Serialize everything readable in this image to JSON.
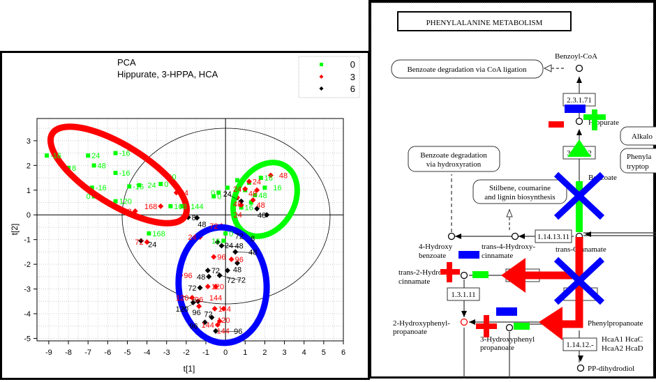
{
  "chart_data": {
    "type": "scatter",
    "title": "PCA",
    "subtitle": "Hippurate, 3-HPPA, HCA",
    "xlabel": "t[1]",
    "ylabel": "t[2]",
    "xlim": [
      -9.6,
      6
    ],
    "ylim": [
      -5.1,
      3.9
    ],
    "xticks": [
      -9,
      -8,
      -7,
      -6,
      -5,
      -4,
      -3,
      -2,
      -1,
      0,
      1,
      2,
      3,
      4,
      5,
      6
    ],
    "yticks": [
      3,
      2,
      1,
      0,
      -1,
      -2,
      -3,
      -4,
      -5
    ],
    "grid": true,
    "legend_position": "top-right",
    "series": [
      {
        "name": "0",
        "color": "#00ff00",
        "marker": "square",
        "points": [
          [
            -9.1,
            2.4,
            "-16"
          ],
          [
            -7,
            2.4,
            "24"
          ],
          [
            -8,
            1.9,
            "8"
          ],
          [
            -6.7,
            2.0,
            "48"
          ],
          [
            -5.6,
            2.5,
            "-16"
          ],
          [
            -5.6,
            1.7,
            "-16"
          ],
          [
            -4.9,
            1.15,
            "-16"
          ],
          [
            -4.4,
            1.2,
            "24"
          ],
          [
            -6.8,
            1.1,
            "-16"
          ],
          [
            -6.7,
            0.75,
            "0"
          ],
          [
            -5.6,
            0.55,
            "120"
          ],
          [
            -2.9,
            1.55,
            "0"
          ],
          [
            -3.3,
            1.25,
            "0"
          ],
          [
            -2.8,
            0.35,
            "168"
          ],
          [
            -2.2,
            0.35,
            "144"
          ],
          [
            -0.6,
            0.75,
            "0"
          ],
          [
            -0.35,
            0.9,
            "0"
          ],
          [
            0.1,
            1.1,
            ""
          ],
          [
            -3.9,
            -0.75,
            "168"
          ],
          [
            0,
            -0.75,
            "0"
          ],
          [
            -0.1,
            -1.05,
            "16"
          ],
          [
            0.6,
            1.4,
            ""
          ],
          [
            1.2,
            1.3,
            ""
          ],
          [
            1.8,
            1.5,
            "16"
          ],
          [
            1.0,
            1.0,
            ""
          ],
          [
            1.5,
            0.8,
            "48"
          ],
          [
            2.0,
            1.1,
            "16"
          ],
          [
            1.3,
            0.5,
            ""
          ],
          [
            0.8,
            0.3,
            "16"
          ]
        ]
      },
      {
        "name": "3",
        "color": "#ff0000",
        "marker": "diamond",
        "points": [
          [
            -2.5,
            0.9,
            "24"
          ],
          [
            -3.3,
            0.35,
            "168"
          ],
          [
            -4.6,
            0.15,
            "48"
          ],
          [
            -4.0,
            -1.1,
            "72"
          ],
          [
            -1.3,
            -0.9,
            "24"
          ],
          [
            -0.2,
            -0.45,
            "72"
          ],
          [
            -0.6,
            -1.7,
            "96"
          ],
          [
            0.3,
            -1.8,
            "96"
          ],
          [
            -2.3,
            -2.45,
            "96"
          ],
          [
            -0.9,
            -2.9,
            "120"
          ],
          [
            -0.5,
            -2.9,
            "144"
          ],
          [
            -1.7,
            -3.35,
            "120"
          ],
          [
            -1.35,
            -3.7,
            "96"
          ],
          [
            -0.55,
            -3.8,
            "144"
          ],
          [
            -0.1,
            -3.8,
            "120"
          ],
          [
            -0.3,
            -4.3,
            "144"
          ],
          [
            -0.4,
            -4.45,
            "144"
          ],
          [
            1.2,
            1.35,
            "24"
          ],
          [
            1.0,
            1.05,
            "24"
          ],
          [
            1.6,
            1.0,
            "48"
          ],
          [
            2.3,
            1.6,
            "48"
          ],
          [
            0.6,
            0.7,
            "48"
          ],
          [
            1.4,
            0.6,
            "48"
          ],
          [
            0.8,
            0.4,
            "24"
          ]
        ]
      },
      {
        "name": "6",
        "color": "#000000",
        "marker": "diamond",
        "points": [
          [
            -1.9,
            -0.1,
            "8"
          ],
          [
            -1.45,
            -0.12,
            "48"
          ],
          [
            -4.3,
            -1.05,
            "24"
          ],
          [
            -0.4,
            -1.1,
            "24"
          ],
          [
            -0.2,
            -1.25,
            "48"
          ],
          [
            0.5,
            -1.5,
            "48"
          ],
          [
            0.6,
            -1.95,
            "48"
          ],
          [
            1.1,
            -0.95,
            "8"
          ],
          [
            -0.9,
            -2.25,
            "72"
          ],
          [
            0.1,
            -2.25,
            "72"
          ],
          [
            -0.85,
            -2.5,
            "48"
          ],
          [
            -0.3,
            -2.45,
            "72"
          ],
          [
            -1.3,
            -2.95,
            "72"
          ],
          [
            -1.65,
            -3.55,
            "96"
          ],
          [
            -1.4,
            -3.5,
            "120"
          ],
          [
            -0.7,
            -4.15,
            "72"
          ],
          [
            -1.05,
            -4.35,
            "96"
          ],
          [
            -0.5,
            -4.7,
            "96"
          ],
          [
            0.8,
            0.55,
            "24"
          ],
          [
            1.6,
            0.25,
            "48"
          ],
          [
            2.1,
            0.0,
            ""
          ],
          [
            0.7,
            -0.6,
            "72"
          ]
        ]
      }
    ]
  },
  "legend": [
    {
      "label": "0",
      "color": "#00ff00"
    },
    {
      "label": "3",
      "color": "#ff0000"
    },
    {
      "label": "6",
      "color": "#000000"
    }
  ],
  "pathway": {
    "title": "PHENYLALANINE METABOLISM",
    "maps": {
      "coa": "Benzoate degradation via CoA ligation",
      "hydrox1": "Benzoate degradation",
      "hydrox2": "via hydroxyration",
      "stil1": "Stilbene, coumarine",
      "stil2": "and lignin biosynthesis",
      "alk": "Alkalo",
      "phe1": "Phenyla",
      "phe2": "tryptop"
    },
    "enzymes": {
      "e1": "2.3.1.71",
      "e2": "3.5.1.32",
      "e3": "1.14.13.11",
      "e4": "1.3.1.11",
      "e5": "1.14.12.-"
    },
    "compounds": {
      "benzoylcoa": "Benzoyl-CoA",
      "hippurate": "Hippurate",
      "benzoate": "Benzoate",
      "hb1": "4-Hydroxy",
      "hb2": "benzoate",
      "thc1": "trans-4-Hydroxy-",
      "thc2": "cinnamate",
      "tc": "trans-Cinnamate",
      "t2h1": "trans-2-Hydroxy-",
      "t2h2": "cinnamate",
      "hpp1": "2-Hydroxyphenyl-",
      "hpp2": "propanoate",
      "3hpp1": "3-Hydroxyphenyl",
      "3hpp2": "propanoate",
      "pp": "Phenylpropanoate",
      "ppd": "PP-dihydrodiol"
    },
    "genes": {
      "g1": "HcaA1  HcaC",
      "g2": "HcaA2  HcaD"
    }
  }
}
